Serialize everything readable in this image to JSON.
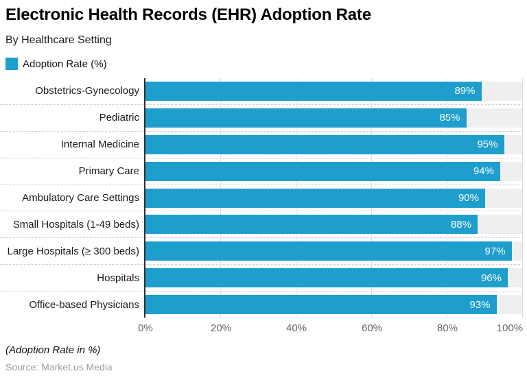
{
  "header": {
    "title": "Electronic Health Records (EHR) Adoption Rate",
    "subtitle": "By Healthcare Setting"
  },
  "legend": {
    "label": "Adoption Rate (%)"
  },
  "chart_data": {
    "type": "bar",
    "orientation": "horizontal",
    "title": "Electronic Health Records (EHR) Adoption Rate",
    "subtitle": "By Healthcare Setting",
    "series_name": "Adoption Rate (%)",
    "categories": [
      "Obstetrics-Gynecology",
      "Pediatric",
      "Internal Medicine",
      "Primary Care",
      "Ambulatory Care Settings",
      "Small Hospitals (1-49 beds)",
      "Large Hospitals (≥ 300 beds)",
      "Hospitals",
      "Office-based Physicians"
    ],
    "values": [
      89,
      85,
      95,
      94,
      90,
      88,
      97,
      96,
      93
    ],
    "value_labels": [
      "89%",
      "85%",
      "95%",
      "94%",
      "90%",
      "88%",
      "97%",
      "96%",
      "93%"
    ],
    "value_suffix": "%",
    "xlim": [
      0,
      100
    ],
    "x_ticks": [
      "0%",
      "20%",
      "40%",
      "60%",
      "80%",
      "100%"
    ],
    "x_tick_values": [
      0,
      20,
      40,
      60,
      80,
      100
    ],
    "grid": "dotted horizontal category separators, light vertical gridlines at ticks",
    "legend_position": "top-left",
    "xlabel": "",
    "ylabel": ""
  },
  "footer": {
    "note": "(Adoption Rate in %)",
    "source": "Source: Market.us Media"
  },
  "colors": {
    "bar": "#1e9ecd",
    "track": "#efefef",
    "axis_line": "#2e2e2e",
    "gridline": "#dcdcdc",
    "tick_label": "#666666",
    "value_label": "#ffffff",
    "source_text": "#9c9c9c"
  }
}
